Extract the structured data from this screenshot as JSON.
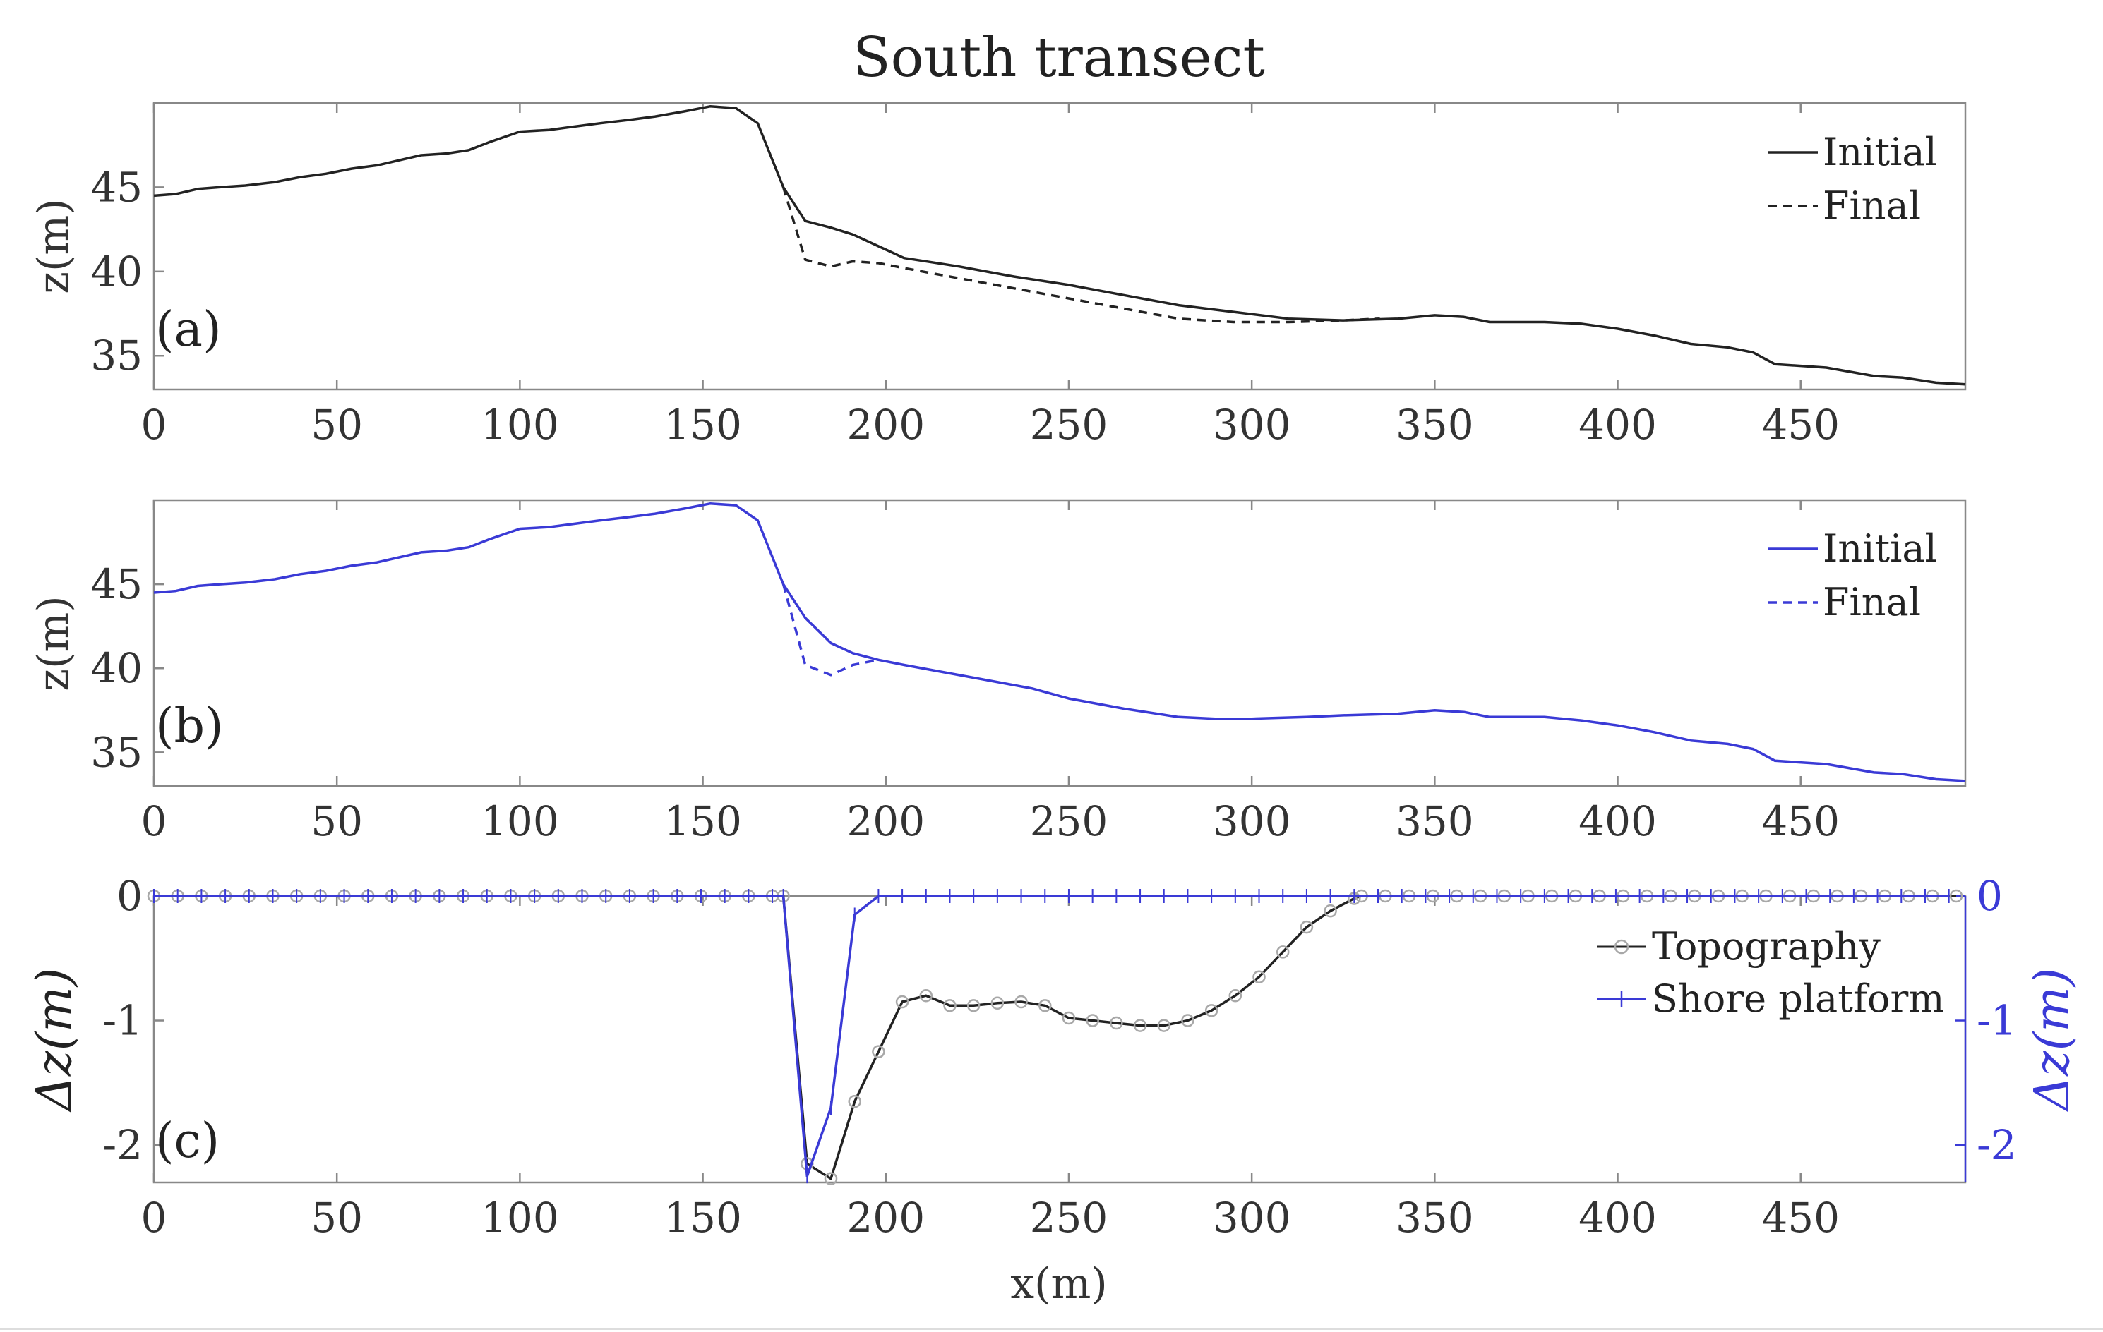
{
  "figure": {
    "title": "South transect"
  },
  "colors": {
    "black_series": "#222222",
    "blue_series": "#3a3ad6",
    "circle_marker": "#a8a8a8",
    "axis": "#888888"
  },
  "chart_data": [
    {
      "panel": "(a)",
      "type": "line",
      "xlabel": "",
      "ylabel": "z(m)",
      "xlim": [
        0,
        495
      ],
      "ylim": [
        33,
        50
      ],
      "xticks": [
        0,
        50,
        100,
        150,
        200,
        250,
        300,
        350,
        400,
        450
      ],
      "yticks": [
        35,
        40,
        45
      ],
      "grid": false,
      "legend_position": "top-right",
      "series": [
        {
          "name": "Initial",
          "color": "#222222",
          "style": "solid",
          "x": [
            0,
            6,
            12,
            18,
            25,
            33,
            40,
            47,
            54,
            61,
            67,
            73,
            80,
            86,
            92,
            100,
            108,
            115,
            122,
            130,
            137,
            145,
            152,
            159,
            165,
            172,
            178,
            185,
            191,
            198,
            205,
            220,
            235,
            250,
            265,
            280,
            295,
            310,
            325,
            340,
            350,
            358,
            365,
            380,
            390,
            400,
            410,
            420,
            430,
            437,
            443,
            457,
            470,
            478,
            487,
            495
          ],
          "y": [
            44.5,
            44.6,
            44.9,
            45.0,
            45.1,
            45.3,
            45.6,
            45.8,
            46.1,
            46.3,
            46.6,
            46.9,
            47.0,
            47.2,
            47.7,
            48.3,
            48.4,
            48.6,
            48.8,
            49.0,
            49.2,
            49.5,
            49.8,
            49.7,
            48.8,
            45.0,
            43.0,
            42.6,
            42.2,
            41.5,
            40.8,
            40.3,
            39.7,
            39.2,
            38.6,
            38.0,
            37.6,
            37.2,
            37.1,
            37.2,
            37.4,
            37.3,
            37.0,
            37.0,
            36.9,
            36.6,
            36.2,
            35.7,
            35.5,
            35.2,
            34.5,
            34.3,
            33.8,
            33.7,
            33.4,
            33.3
          ]
        },
        {
          "name": "Final",
          "color": "#222222",
          "style": "dashed",
          "x": [
            172,
            178,
            185,
            191,
            198,
            205,
            220,
            235,
            250,
            265,
            280,
            295,
            310,
            325,
            335
          ],
          "y": [
            45.0,
            40.7,
            40.3,
            40.6,
            40.5,
            40.2,
            39.6,
            39.0,
            38.4,
            37.8,
            37.2,
            37.0,
            37.0,
            37.1,
            37.2
          ]
        }
      ]
    },
    {
      "panel": "(b)",
      "type": "line",
      "xlabel": "",
      "ylabel": "z(m)",
      "xlim": [
        0,
        495
      ],
      "ylim": [
        33,
        50
      ],
      "xticks": [
        0,
        50,
        100,
        150,
        200,
        250,
        300,
        350,
        400,
        450
      ],
      "yticks": [
        35,
        40,
        45
      ],
      "grid": false,
      "legend_position": "top-right",
      "series": [
        {
          "name": "Initial",
          "color": "#3a3ad6",
          "style": "solid",
          "x": [
            0,
            6,
            12,
            18,
            25,
            33,
            40,
            47,
            54,
            61,
            67,
            73,
            80,
            86,
            92,
            100,
            108,
            115,
            122,
            130,
            137,
            145,
            152,
            159,
            165,
            172,
            178,
            185,
            191,
            198,
            205,
            215,
            225,
            240,
            250,
            265,
            280,
            290,
            300,
            315,
            325,
            340,
            350,
            358,
            365,
            380,
            390,
            400,
            410,
            420,
            430,
            437,
            443,
            457,
            470,
            478,
            487,
            495
          ],
          "y": [
            44.5,
            44.6,
            44.9,
            45.0,
            45.1,
            45.3,
            45.6,
            45.8,
            46.1,
            46.3,
            46.6,
            46.9,
            47.0,
            47.2,
            47.7,
            48.3,
            48.4,
            48.6,
            48.8,
            49.0,
            49.2,
            49.5,
            49.8,
            49.7,
            48.8,
            45.0,
            43.0,
            41.5,
            40.9,
            40.5,
            40.2,
            39.8,
            39.4,
            38.8,
            38.2,
            37.6,
            37.1,
            37.0,
            37.0,
            37.1,
            37.2,
            37.3,
            37.5,
            37.4,
            37.1,
            37.1,
            36.9,
            36.6,
            36.2,
            35.7,
            35.5,
            35.2,
            34.5,
            34.3,
            33.8,
            33.7,
            33.4,
            33.3
          ]
        },
        {
          "name": "Final",
          "color": "#3a3ad6",
          "style": "dashed",
          "x": [
            172,
            178,
            185,
            191,
            198
          ],
          "y": [
            45.0,
            40.2,
            39.6,
            40.2,
            40.5
          ]
        }
      ]
    },
    {
      "panel": "(c)",
      "type": "line",
      "xlabel": "x(m)",
      "ylabel": "Δz(m)",
      "ylabel_right": "Δz(m)",
      "xlim": [
        0,
        495
      ],
      "ylim": [
        -2.3,
        0
      ],
      "xticks": [
        0,
        50,
        100,
        150,
        200,
        250,
        300,
        350,
        400,
        450
      ],
      "yticks": [
        0,
        -1,
        -2
      ],
      "yticks_right": [
        0,
        -1,
        -2
      ],
      "grid": false,
      "legend_position": "upper-right",
      "series": [
        {
          "name": "Topography",
          "color": "#222222",
          "marker": "circle",
          "x": [
            0,
            6.5,
            13,
            19.5,
            26,
            32.5,
            39,
            45.5,
            52,
            58.5,
            65,
            71.5,
            78,
            84.5,
            91,
            97.5,
            104,
            110.5,
            117,
            123.5,
            130,
            136.5,
            143,
            149.5,
            156,
            162.5,
            169,
            172,
            178.5,
            185,
            191.5,
            198,
            204.5,
            211,
            217.5,
            224,
            230.5,
            237,
            243.5,
            250,
            256.5,
            263,
            269.5,
            276,
            282.5,
            289,
            295.5,
            302,
            308.5,
            315,
            321.5,
            328,
            330,
            336.5,
            343,
            349.5,
            356,
            362.5,
            369,
            375.5,
            382,
            388.5,
            395,
            401.5,
            408,
            414.5,
            421,
            427.5,
            434,
            440.5,
            447,
            453.5,
            460,
            466.5,
            473,
            479.5,
            486,
            492.5
          ],
          "y": [
            0,
            0,
            0,
            0,
            0,
            0,
            0,
            0,
            0,
            0,
            0,
            0,
            0,
            0,
            0,
            0,
            0,
            0,
            0,
            0,
            0,
            0,
            0,
            0,
            0,
            0,
            0,
            0,
            -2.15,
            -2.27,
            -1.65,
            -1.25,
            -0.85,
            -0.8,
            -0.88,
            -0.88,
            -0.86,
            -0.85,
            -0.88,
            -0.98,
            -1.0,
            -1.02,
            -1.04,
            -1.04,
            -1.0,
            -0.92,
            -0.8,
            -0.65,
            -0.45,
            -0.25,
            -0.12,
            -0.02,
            0,
            0,
            0,
            0,
            0,
            0,
            0,
            0,
            0,
            0,
            0,
            0,
            0,
            0,
            0,
            0,
            0,
            0,
            0,
            0,
            0,
            0,
            0,
            0,
            0,
            0
          ]
        },
        {
          "name": "Shore platform",
          "color": "#3a3ad6",
          "marker": "plus",
          "x": [
            0,
            6.5,
            13,
            19.5,
            26,
            32.5,
            39,
            45.5,
            52,
            58.5,
            65,
            71.5,
            78,
            84.5,
            91,
            97.5,
            104,
            110.5,
            117,
            123.5,
            130,
            136.5,
            143,
            149.5,
            156,
            162.5,
            169,
            172,
            178.5,
            185,
            191.5,
            198,
            204.5,
            211,
            217.5,
            224,
            230.5,
            237,
            243.5,
            250,
            256.5,
            263,
            269.5,
            276,
            282.5,
            289,
            295.5,
            302,
            308.5,
            315,
            321.5,
            328,
            334.5,
            341,
            347.5,
            354,
            360.5,
            367,
            373.5,
            380,
            386.5,
            393,
            399.5,
            406,
            412.5,
            419,
            425.5,
            432,
            438.5,
            445,
            451.5,
            458,
            464.5,
            471,
            477.5,
            484,
            490.5
          ],
          "y": [
            0,
            0,
            0,
            0,
            0,
            0,
            0,
            0,
            0,
            0,
            0,
            0,
            0,
            0,
            0,
            0,
            0,
            0,
            0,
            0,
            0,
            0,
            0,
            0,
            0,
            0,
            0,
            0,
            -2.25,
            -1.7,
            -0.15,
            0,
            0,
            0,
            0,
            0,
            0,
            0,
            0,
            0,
            0,
            0,
            0,
            0,
            0,
            0,
            0,
            0,
            0,
            0,
            0,
            0,
            0,
            0,
            0,
            0,
            0,
            0,
            0,
            0,
            0,
            0,
            0,
            0,
            0,
            0,
            0,
            0,
            0,
            0,
            0,
            0,
            0,
            0,
            0,
            0,
            0
          ]
        }
      ]
    }
  ]
}
